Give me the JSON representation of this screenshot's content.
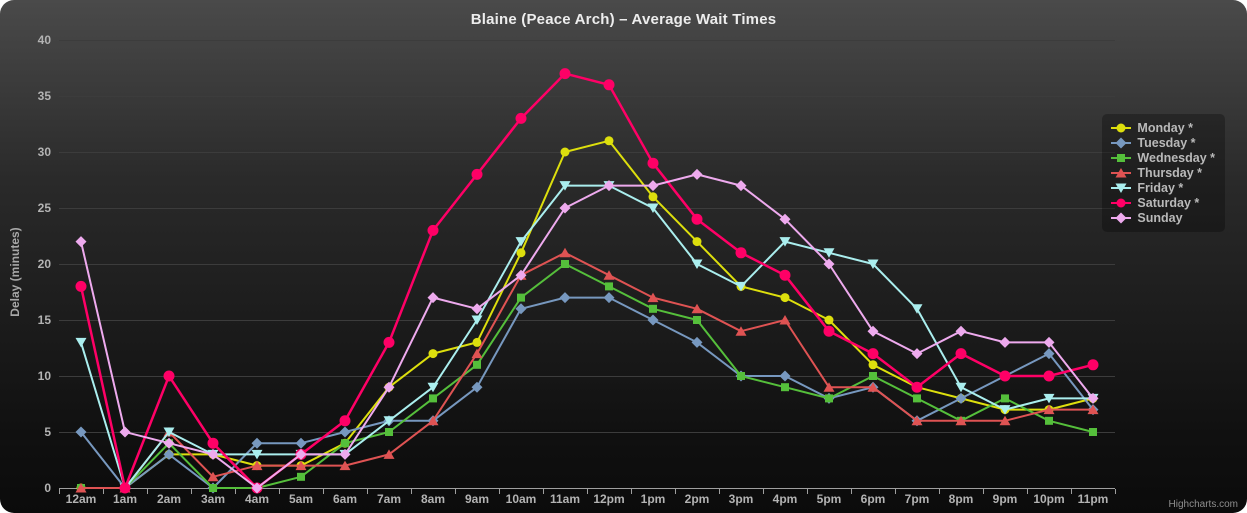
{
  "title": "Blaine (Peace Arch) – Average Wait Times",
  "credits": "Highcharts.com",
  "chart_data": {
    "type": "line",
    "title": "Blaine (Peace Arch) – Average Wait Times",
    "xlabel": "",
    "ylabel": "Delay (minutes)",
    "ylim": [
      0,
      40
    ],
    "ytick_step": 5,
    "grid": true,
    "legend_position": "right",
    "background": "dark-gradient",
    "categories": [
      "12am",
      "1am",
      "2am",
      "3am",
      "4am",
      "5am",
      "6am",
      "7am",
      "8am",
      "9am",
      "10am",
      "11am",
      "12pm",
      "1pm",
      "2pm",
      "3pm",
      "4pm",
      "5pm",
      "6pm",
      "7pm",
      "8pm",
      "9pm",
      "10pm",
      "11pm"
    ],
    "series": [
      {
        "name": "Monday *",
        "color": "#DDDF0D",
        "marker": "circle",
        "values": [
          0,
          0,
          3,
          3,
          2,
          2,
          4,
          9,
          12,
          13,
          21,
          30,
          31,
          26,
          22,
          18,
          17,
          15,
          11,
          9,
          8,
          7,
          7,
          8
        ]
      },
      {
        "name": "Tuesday *",
        "color": "#7798BF",
        "marker": "diamond",
        "values": [
          5,
          0,
          3,
          0,
          4,
          4,
          5,
          6,
          6,
          9,
          16,
          17,
          17,
          15,
          13,
          10,
          10,
          8,
          9,
          6,
          8,
          10,
          12,
          7
        ]
      },
      {
        "name": "Wednesday *",
        "color": "#55BF3B",
        "marker": "square",
        "values": [
          0,
          0,
          4,
          0,
          0,
          1,
          4,
          5,
          8,
          11,
          17,
          20,
          18,
          16,
          15,
          10,
          9,
          8,
          10,
          8,
          6,
          8,
          6,
          5
        ]
      },
      {
        "name": "Thursday *",
        "color": "#DF5353",
        "marker": "triangle-up",
        "values": [
          0,
          0,
          5,
          1,
          2,
          2,
          2,
          3,
          6,
          12,
          19,
          21,
          19,
          17,
          16,
          14,
          15,
          9,
          9,
          6,
          6,
          6,
          7,
          7
        ]
      },
      {
        "name": "Friday *",
        "color": "#AAEEEE",
        "marker": "triangle-down",
        "values": [
          13,
          0,
          5,
          3,
          3,
          3,
          3,
          6,
          9,
          15,
          22,
          27,
          27,
          25,
          20,
          18,
          22,
          21,
          20,
          16,
          9,
          7,
          8,
          8
        ]
      },
      {
        "name": "Saturday *",
        "color": "#FF0066",
        "marker": "circle",
        "values": [
          18,
          0,
          10,
          4,
          0,
          3,
          6,
          13,
          23,
          28,
          33,
          37,
          36,
          29,
          24,
          21,
          19,
          14,
          12,
          9,
          12,
          10,
          10,
          11
        ]
      },
      {
        "name": "Sunday",
        "color": "#EEAAEE",
        "marker": "diamond",
        "values": [
          22,
          5,
          4,
          3,
          0,
          3,
          3,
          9,
          17,
          16,
          19,
          25,
          27,
          27,
          28,
          27,
          24,
          20,
          14,
          12,
          14,
          13,
          13,
          8
        ]
      }
    ],
    "axis_colors": {
      "grid": "#3c3c3c",
      "axis_line": "#9f9f9f",
      "labels": "#b3b3b3"
    }
  }
}
